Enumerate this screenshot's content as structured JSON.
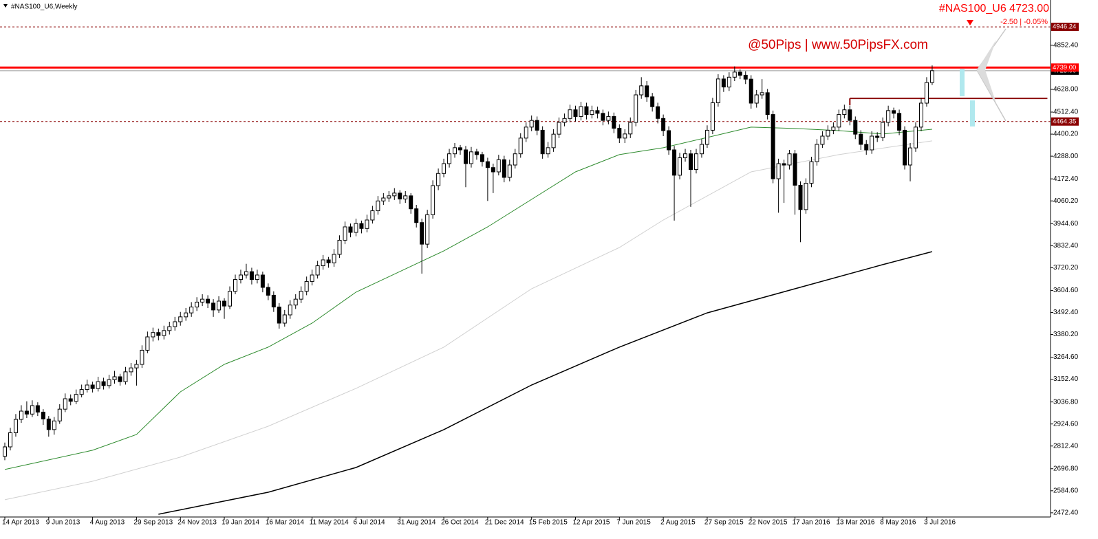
{
  "chart_data": {
    "type": "candlestick",
    "title": "#NAS100_U6,Weekly",
    "symbol_price": "#NAS100_U6  4723.00",
    "change": "-2.50 | -0.05%",
    "watermark": "@50Pips | www.50PipsFX.com",
    "categories": [
      "14 Apr 2013",
      null,
      null,
      null,
      null,
      null,
      null,
      null,
      "9 Jun 2013",
      null,
      null,
      null,
      null,
      null,
      null,
      null,
      "4 Aug 2013",
      null,
      null,
      null,
      null,
      null,
      null,
      null,
      "29 Sep 2013",
      null,
      null,
      null,
      null,
      null,
      null,
      null,
      "24 Nov 2013",
      null,
      null,
      null,
      null,
      null,
      null,
      null,
      "19 Jan 2014",
      null,
      null,
      null,
      null,
      null,
      null,
      null,
      "16 Mar 2014",
      null,
      null,
      null,
      null,
      null,
      null,
      null,
      "11 May 2014",
      null,
      null,
      null,
      null,
      null,
      null,
      null,
      "6 Jul 2014",
      null,
      null,
      null,
      null,
      null,
      null,
      null,
      "31 Aug 2014",
      null,
      null,
      null,
      null,
      null,
      null,
      null,
      "26 Oct 2014",
      null,
      null,
      null,
      null,
      null,
      null,
      null,
      "21 Dec 2014",
      null,
      null,
      null,
      null,
      null,
      null,
      null,
      "15 Feb 2015",
      null,
      null,
      null,
      null,
      null,
      null,
      null,
      "12 Apr 2015",
      null,
      null,
      null,
      null,
      null,
      null,
      null,
      "7 Jun 2015",
      null,
      null,
      null,
      null,
      null,
      null,
      null,
      "2 Aug 2015",
      null,
      null,
      null,
      null,
      null,
      null,
      null,
      "27 Sep 2015",
      null,
      null,
      null,
      null,
      null,
      null,
      null,
      "22 Nov 2015",
      null,
      null,
      null,
      null,
      null,
      null,
      null,
      "17 Jan 2016",
      null,
      null,
      null,
      null,
      null,
      null,
      null,
      "13 Mar 2016",
      null,
      null,
      null,
      null,
      null,
      null,
      null,
      "8 May 2016",
      null,
      null,
      null,
      null,
      null,
      null,
      null,
      "3 Jul 2016",
      null
    ],
    "candles": [
      [
        2760,
        2830,
        2740,
        2808
      ],
      [
        2808,
        2905,
        2790,
        2880
      ],
      [
        2880,
        2975,
        2860,
        2948
      ],
      [
        2948,
        3020,
        2930,
        2990
      ],
      [
        2990,
        3040,
        2955,
        2975
      ],
      [
        2975,
        3045,
        2960,
        3018
      ],
      [
        3018,
        3035,
        2965,
        2985
      ],
      [
        2985,
        3000,
        2920,
        2950
      ],
      [
        2950,
        2965,
        2860,
        2896
      ],
      [
        2896,
        2960,
        2870,
        2940
      ],
      [
        2940,
        3025,
        2925,
        3000
      ],
      [
        3000,
        3080,
        2985,
        3053
      ],
      [
        3053,
        3075,
        3020,
        3040
      ],
      [
        3040,
        3100,
        3025,
        3075
      ],
      [
        3075,
        3125,
        3060,
        3100
      ],
      [
        3100,
        3150,
        3085,
        3123
      ],
      [
        3123,
        3140,
        3085,
        3105
      ],
      [
        3105,
        3165,
        3090,
        3140
      ],
      [
        3140,
        3160,
        3100,
        3120
      ],
      [
        3120,
        3175,
        3105,
        3150
      ],
      [
        3150,
        3195,
        3130,
        3165
      ],
      [
        3165,
        3180,
        3120,
        3140
      ],
      [
        3140,
        3215,
        3125,
        3190
      ],
      [
        3190,
        3235,
        3170,
        3210
      ],
      [
        3210,
        3250,
        3120,
        3228
      ],
      [
        3228,
        3325,
        3210,
        3300
      ],
      [
        3300,
        3395,
        3285,
        3368
      ],
      [
        3368,
        3415,
        3345,
        3390
      ],
      [
        3390,
        3410,
        3350,
        3375
      ],
      [
        3375,
        3425,
        3355,
        3400
      ],
      [
        3400,
        3445,
        3380,
        3420
      ],
      [
        3420,
        3470,
        3400,
        3445
      ],
      [
        3445,
        3495,
        3425,
        3470
      ],
      [
        3470,
        3515,
        3450,
        3490
      ],
      [
        3490,
        3545,
        3470,
        3520
      ],
      [
        3520,
        3570,
        3500,
        3545
      ],
      [
        3545,
        3585,
        3525,
        3560
      ],
      [
        3560,
        3580,
        3515,
        3540
      ],
      [
        3540,
        3560,
        3470,
        3505
      ],
      [
        3505,
        3575,
        3490,
        3550
      ],
      [
        3550,
        3565,
        3460,
        3525
      ],
      [
        3525,
        3625,
        3510,
        3600
      ],
      [
        3600,
        3685,
        3585,
        3660
      ],
      [
        3660,
        3710,
        3640,
        3683
      ],
      [
        3683,
        3740,
        3665,
        3700
      ],
      [
        3700,
        3720,
        3635,
        3660
      ],
      [
        3660,
        3710,
        3640,
        3683
      ],
      [
        3683,
        3700,
        3595,
        3620
      ],
      [
        3620,
        3640,
        3555,
        3580
      ],
      [
        3580,
        3600,
        3495,
        3520
      ],
      [
        3520,
        3540,
        3410,
        3438
      ],
      [
        3438,
        3505,
        3420,
        3480
      ],
      [
        3480,
        3555,
        3460,
        3530
      ],
      [
        3530,
        3585,
        3510,
        3560
      ],
      [
        3560,
        3625,
        3540,
        3600
      ],
      [
        3600,
        3675,
        3580,
        3650
      ],
      [
        3650,
        3710,
        3630,
        3683
      ],
      [
        3683,
        3755,
        3665,
        3730
      ],
      [
        3730,
        3785,
        3710,
        3760
      ],
      [
        3760,
        3775,
        3720,
        3745
      ],
      [
        3745,
        3815,
        3725,
        3788
      ],
      [
        3788,
        3885,
        3770,
        3860
      ],
      [
        3860,
        3955,
        3840,
        3928
      ],
      [
        3928,
        3945,
        3875,
        3900
      ],
      [
        3900,
        3970,
        3880,
        3945
      ],
      [
        3945,
        3960,
        3895,
        3920
      ],
      [
        3920,
        3990,
        3900,
        3963
      ],
      [
        3963,
        4035,
        3945,
        4010
      ],
      [
        4010,
        4085,
        3990,
        4060
      ],
      [
        4060,
        4100,
        4040,
        4075
      ],
      [
        4075,
        4110,
        4055,
        4086
      ],
      [
        4086,
        4125,
        4065,
        4100
      ],
      [
        4100,
        4115,
        4045,
        4070
      ],
      [
        4070,
        4110,
        4050,
        4086
      ],
      [
        4086,
        4100,
        3995,
        4020
      ],
      [
        4020,
        4040,
        3925,
        3950
      ],
      [
        3950,
        3970,
        3690,
        3840
      ],
      [
        3840,
        4015,
        3820,
        3990
      ],
      [
        3990,
        4165,
        3970,
        4138
      ],
      [
        4138,
        4225,
        4115,
        4200
      ],
      [
        4200,
        4275,
        4180,
        4250
      ],
      [
        4250,
        4325,
        4230,
        4300
      ],
      [
        4300,
        4355,
        4280,
        4331
      ],
      [
        4331,
        4345,
        4295,
        4320
      ],
      [
        4320,
        4340,
        4130,
        4250
      ],
      [
        4250,
        4335,
        4230,
        4310
      ],
      [
        4310,
        4325,
        4270,
        4296
      ],
      [
        4296,
        4310,
        4235,
        4260
      ],
      [
        4260,
        4280,
        4060,
        4230
      ],
      [
        4230,
        4250,
        4100,
        4208
      ],
      [
        4208,
        4295,
        4190,
        4270
      ],
      [
        4270,
        4290,
        4155,
        4180
      ],
      [
        4180,
        4270,
        4160,
        4243
      ],
      [
        4243,
        4325,
        4225,
        4300
      ],
      [
        4300,
        4405,
        4280,
        4380
      ],
      [
        4380,
        4460,
        4360,
        4436
      ],
      [
        4436,
        4495,
        4415,
        4470
      ],
      [
        4470,
        4490,
        4395,
        4420
      ],
      [
        4420,
        4440,
        4275,
        4300
      ],
      [
        4300,
        4360,
        4280,
        4331
      ],
      [
        4331,
        4425,
        4310,
        4400
      ],
      [
        4400,
        4485,
        4380,
        4460
      ],
      [
        4460,
        4505,
        4440,
        4480
      ],
      [
        4480,
        4550,
        4460,
        4524
      ],
      [
        4524,
        4545,
        4465,
        4490
      ],
      [
        4490,
        4565,
        4470,
        4540
      ],
      [
        4540,
        4560,
        4475,
        4500
      ],
      [
        4500,
        4545,
        4480,
        4520
      ],
      [
        4520,
        4540,
        4480,
        4506
      ],
      [
        4506,
        4525,
        4445,
        4470
      ],
      [
        4470,
        4515,
        4450,
        4490
      ],
      [
        4490,
        4510,
        4405,
        4430
      ],
      [
        4430,
        4450,
        4355,
        4380
      ],
      [
        4380,
        4425,
        4355,
        4401
      ],
      [
        4401,
        4485,
        4380,
        4460
      ],
      [
        4460,
        4625,
        4440,
        4600
      ],
      [
        4600,
        4690,
        4580,
        4646
      ],
      [
        4646,
        4670,
        4565,
        4590
      ],
      [
        4590,
        4610,
        4515,
        4540
      ],
      [
        4540,
        4560,
        4455,
        4480
      ],
      [
        4480,
        4500,
        4390,
        4418
      ],
      [
        4418,
        4440,
        4295,
        4320
      ],
      [
        4320,
        4340,
        3960,
        4191
      ],
      [
        4191,
        4305,
        4170,
        4280
      ],
      [
        4280,
        4325,
        4260,
        4300
      ],
      [
        4300,
        4320,
        4030,
        4220
      ],
      [
        4220,
        4325,
        4200,
        4300
      ],
      [
        4300,
        4375,
        4280,
        4348
      ],
      [
        4348,
        4445,
        4330,
        4420
      ],
      [
        4420,
        4585,
        4400,
        4560
      ],
      [
        4560,
        4705,
        4540,
        4681
      ],
      [
        4681,
        4700,
        4615,
        4640
      ],
      [
        4640,
        4715,
        4620,
        4690
      ],
      [
        4690,
        4745,
        4670,
        4716
      ],
      [
        4716,
        4730,
        4680,
        4700
      ],
      [
        4700,
        4720,
        4655,
        4680
      ],
      [
        4680,
        4700,
        4530,
        4558
      ],
      [
        4558,
        4625,
        4535,
        4600
      ],
      [
        4600,
        4680,
        4580,
        4611
      ],
      [
        4611,
        4630,
        4475,
        4500
      ],
      [
        4500,
        4520,
        4150,
        4173
      ],
      [
        4173,
        4275,
        4000,
        4250
      ],
      [
        4250,
        4270,
        4050,
        4243
      ],
      [
        4243,
        4320,
        4220,
        4300
      ],
      [
        4300,
        4320,
        3990,
        4140
      ],
      [
        4140,
        4160,
        3850,
        4016
      ],
      [
        4016,
        4175,
        3995,
        4150
      ],
      [
        4150,
        4285,
        4130,
        4260
      ],
      [
        4260,
        4375,
        4240,
        4348
      ],
      [
        4348,
        4415,
        4330,
        4390
      ],
      [
        4390,
        4445,
        4370,
        4420
      ],
      [
        4420,
        4460,
        4400,
        4436
      ],
      [
        4436,
        4525,
        4415,
        4500
      ],
      [
        4500,
        4550,
        4480,
        4524
      ],
      [
        4524,
        4545,
        4445,
        4470
      ],
      [
        4470,
        4490,
        4375,
        4400
      ],
      [
        4400,
        4420,
        4320,
        4348
      ],
      [
        4348,
        4370,
        4295,
        4320
      ],
      [
        4320,
        4415,
        4300,
        4390
      ],
      [
        4390,
        4410,
        4360,
        4383
      ],
      [
        4383,
        4485,
        4365,
        4460
      ],
      [
        4460,
        4545,
        4440,
        4520
      ],
      [
        4520,
        4535,
        4480,
        4506
      ],
      [
        4506,
        4525,
        4395,
        4420
      ],
      [
        4420,
        4440,
        4220,
        4243
      ],
      [
        4243,
        4355,
        4160,
        4330
      ],
      [
        4330,
        4460,
        4310,
        4436
      ],
      [
        4436,
        4585,
        4415,
        4558
      ],
      [
        4558,
        4690,
        4540,
        4663
      ],
      [
        4663,
        4750,
        4650,
        4723
      ]
    ],
    "ylim": [
      2451,
      5083
    ],
    "yticks": [
      {
        "value": 2472.4,
        "label": "2472.40"
      },
      {
        "value": 2584.6,
        "label": "2584.60"
      },
      {
        "value": 2696.8,
        "label": "2696.80"
      },
      {
        "value": 2812.4,
        "label": "2812.40"
      },
      {
        "value": 2924.6,
        "label": "2924.60"
      },
      {
        "value": 3036.8,
        "label": "3036.80"
      },
      {
        "value": 3152.4,
        "label": "3152.40"
      },
      {
        "value": 3264.6,
        "label": "3264.60"
      },
      {
        "value": 3380.2,
        "label": "3380.20"
      },
      {
        "value": 3492.4,
        "label": "3492.40"
      },
      {
        "value": 3604.6,
        "label": "3604.60"
      },
      {
        "value": 3720.2,
        "label": "3720.20"
      },
      {
        "value": 3832.4,
        "label": "3832.40"
      },
      {
        "value": 3944.6,
        "label": "3944.60"
      },
      {
        "value": 4060.2,
        "label": "4060.20"
      },
      {
        "value": 4172.4,
        "label": "4172.40"
      },
      {
        "value": 4288,
        "label": "4288.00"
      },
      {
        "value": 4400.2,
        "label": "4400.20"
      },
      {
        "value": 4512.4,
        "label": "4512.40"
      },
      {
        "value": 4628,
        "label": "4628.00"
      },
      {
        "value": 4852.4,
        "label": "4852.40"
      }
    ],
    "moving_averages": [
      {
        "color": "#2e8b2e",
        "x": [
          0,
          16,
          24,
          32,
          40,
          48,
          56,
          64,
          72,
          80,
          88,
          96,
          104,
          112,
          120,
          128,
          136,
          144,
          152,
          160,
          169
        ],
        "values": [
          2693,
          2791,
          2871,
          3088,
          3228,
          3316,
          3438,
          3596,
          3701,
          3806,
          3928,
          4068,
          4208,
          4296,
          4331,
          4383,
          4436,
          4429,
          4418,
          4401,
          4425
        ]
      },
      {
        "color": "#d0d0d0",
        "x": [
          0,
          16,
          32,
          48,
          64,
          80,
          96,
          112,
          120,
          136,
          152,
          169
        ],
        "values": [
          2539,
          2633,
          2756,
          2913,
          3106,
          3316,
          3613,
          3823,
          3963,
          4208,
          4296,
          4366
        ]
      },
      {
        "color": "#000000",
        "x": [
          28,
          48,
          64,
          80,
          96,
          112,
          128,
          144,
          160,
          169
        ],
        "values": [
          2465,
          2577,
          2703,
          2896,
          3123,
          3316,
          3490,
          3613,
          3736,
          3802
        ]
      }
    ],
    "levels": [
      {
        "value": 4946.24,
        "label": "4946.24",
        "color": "#8b0000",
        "style": "dashed"
      },
      {
        "value": 4739,
        "label": "4739.00",
        "color": "#ff0000",
        "style": "solid"
      },
      {
        "value": 4464.35,
        "label": "4464.35",
        "color": "#8b0000",
        "style": "dashed"
      }
    ],
    "current_price": {
      "value": 4723,
      "label": "4723.00"
    },
    "segment": {
      "value": 4582,
      "x": [
        154,
        190
      ],
      "color": "#8b0000"
    },
    "bull_color": "#ffffff",
    "bear_color": "#000000"
  }
}
